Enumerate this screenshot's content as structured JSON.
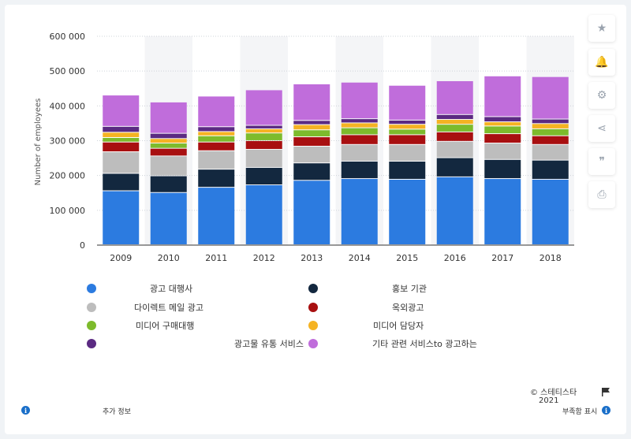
{
  "chart_data": {
    "type": "bar",
    "stacked": true,
    "categories": [
      "2009",
      "2010",
      "2011",
      "2012",
      "2013",
      "2014",
      "2015",
      "2016",
      "2017",
      "2018"
    ],
    "ylabel": "Number of employees",
    "ylim": [
      0,
      600000
    ],
    "yticks": [
      0,
      100000,
      200000,
      300000,
      400000,
      500000,
      600000
    ],
    "ytick_labels": [
      "0",
      "100 000",
      "200 000",
      "300 000",
      "400 000",
      "500 000",
      "600 000"
    ],
    "series": [
      {
        "name": "광고 대행사",
        "color": "#2c7be0",
        "values": [
          155000,
          150000,
          165000,
          172000,
          185000,
          190000,
          188000,
          195000,
          190000,
          188000
        ]
      },
      {
        "name": "홍보 기관",
        "color": "#13283f",
        "values": [
          50000,
          48000,
          52000,
          50000,
          50000,
          50000,
          52000,
          55000,
          55000,
          55000
        ]
      },
      {
        "name": "다이렉트 메일 광고",
        "color": "#bdbdbd",
        "values": [
          62000,
          57000,
          53000,
          52000,
          48000,
          48000,
          48000,
          47000,
          47000,
          45000
        ]
      },
      {
        "name": "옥외광고",
        "color": "#a80f10",
        "values": [
          28000,
          22000,
          25000,
          25000,
          27000,
          28000,
          28000,
          27000,
          27000,
          25000
        ]
      },
      {
        "name": "미디어 구매대행",
        "color": "#7dbb2c",
        "values": [
          13000,
          15000,
          18000,
          22000,
          20000,
          20000,
          16000,
          22000,
          22000,
          20000
        ]
      },
      {
        "name": "미디어 담당자",
        "color": "#f5b323",
        "values": [
          15000,
          13000,
          12000,
          12000,
          15000,
          14000,
          14000,
          14000,
          12000,
          15000
        ]
      },
      {
        "name": "광고물 유통 서비스",
        "color": "#5b2a82",
        "values": [
          17000,
          15000,
          14000,
          10000,
          12000,
          12000,
          12000,
          14000,
          15000,
          13000
        ]
      },
      {
        "name": "기타 관련 서비스to 광고하는",
        "color": "#c06ddb",
        "values": [
          90000,
          90000,
          88000,
          102000,
          105000,
          105000,
          100000,
          97000,
          117000,
          122000
        ]
      }
    ]
  },
  "source": {
    "copyright": "© 스테티스타",
    "year": "2021"
  },
  "footer": {
    "additional_info": "추가 정보",
    "show_source": "부족함 표시"
  },
  "side_buttons": [
    {
      "icon": "star-icon",
      "glyph": "★"
    },
    {
      "icon": "bell-icon",
      "glyph": "🔔"
    },
    {
      "icon": "gear-icon",
      "glyph": "⚙"
    },
    {
      "icon": "share-icon",
      "glyph": "⋖"
    },
    {
      "icon": "quote-icon",
      "glyph": "❞"
    },
    {
      "icon": "print-icon",
      "glyph": "⎙"
    }
  ]
}
